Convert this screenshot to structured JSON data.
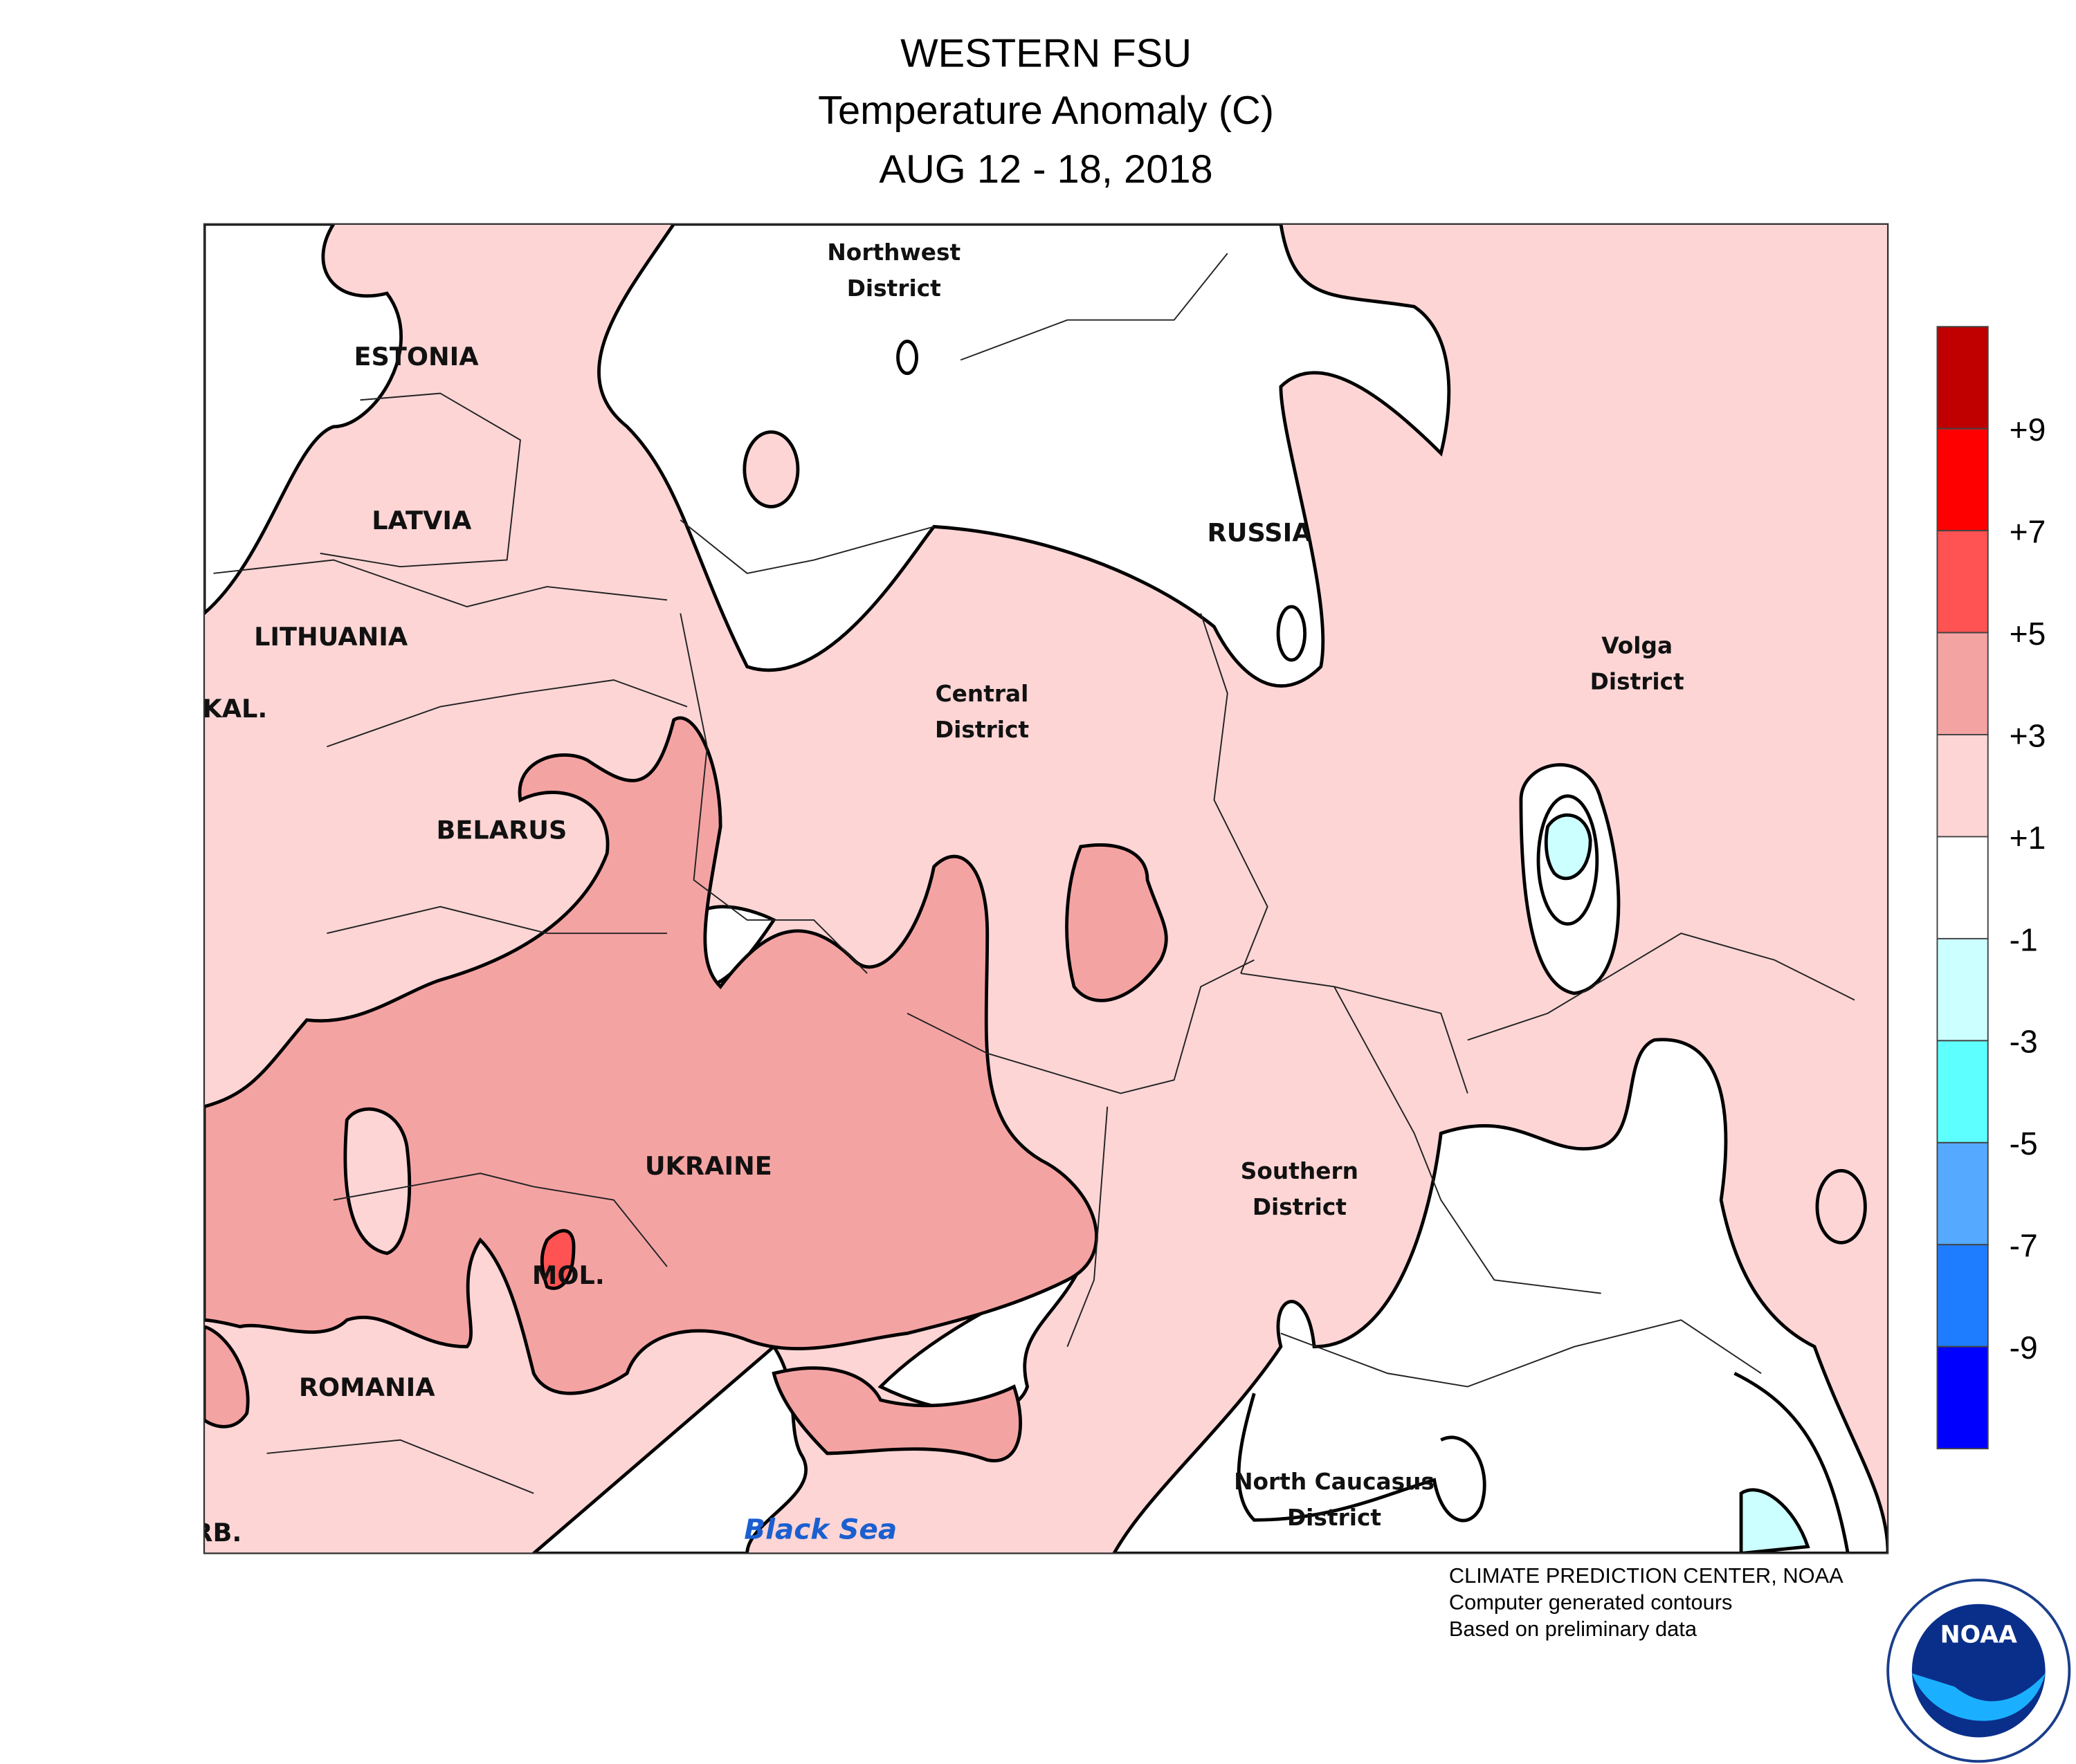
{
  "header": {
    "title_lines": [
      "WESTERN FSU",
      "Temperature Anomaly (C)",
      "AUG 12 - 18, 2018"
    ]
  },
  "map": {
    "labels": [
      {
        "lines": [
          "ESTONIA"
        ]
      },
      {
        "lines": [
          "LATVIA"
        ]
      },
      {
        "lines": [
          "LITHUANIA"
        ]
      },
      {
        "lines": [
          "KAL."
        ]
      },
      {
        "lines": [
          "BELARUS"
        ]
      },
      {
        "lines": [
          "UKRAINE"
        ]
      },
      {
        "lines": [
          "MOL."
        ]
      },
      {
        "lines": [
          "ROMANIA"
        ]
      },
      {
        "lines": [
          "RB."
        ]
      },
      {
        "lines": [
          "Northwest",
          "District"
        ]
      },
      {
        "lines": [
          "RUSSIA"
        ]
      },
      {
        "lines": [
          "Central",
          "District"
        ]
      },
      {
        "lines": [
          "Volga",
          "District"
        ]
      },
      {
        "lines": [
          "Southern",
          "District"
        ]
      },
      {
        "lines": [
          "North Caucasus",
          "District"
        ]
      }
    ],
    "sea_label": "Black Sea"
  },
  "legend": {
    "colors": [
      "#c00000",
      "#ff0000",
      "#ff5252",
      "#f4a3a3",
      "#fdd5d5",
      "#ffffff",
      "#ccffff",
      "#5effff",
      "#55aaff",
      "#1e7dff",
      "#0000ff"
    ],
    "labels": [
      "+9",
      "+7",
      "+5",
      "+3",
      "+1",
      "-1",
      "-3",
      "-5",
      "-7",
      "-9"
    ]
  },
  "footer": {
    "lines": [
      "CLIMATE PREDICTION CENTER, NOAA",
      "Computer generated contours",
      "Based on preliminary data"
    ]
  },
  "logo": {
    "text": "NOAA"
  }
}
